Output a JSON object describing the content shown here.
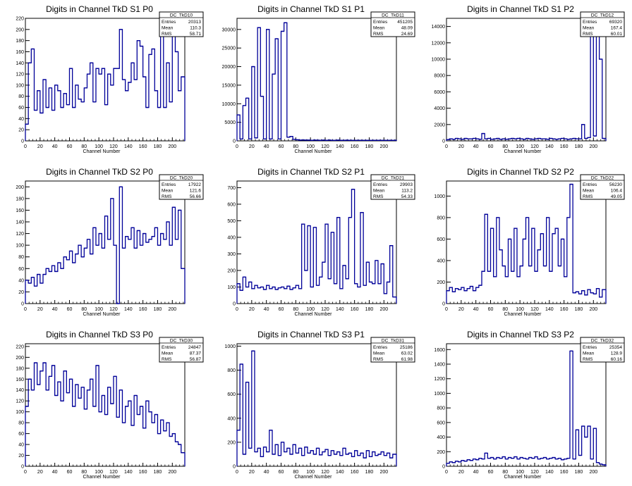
{
  "chart_data": [
    {
      "type": "histogram",
      "title": "Digits in Channel TkD S1 P0",
      "xlabel": "Channel Number",
      "xlim": [
        0,
        217
      ],
      "ylim": [
        0,
        220
      ],
      "xticks": [
        0,
        20,
        40,
        60,
        80,
        100,
        120,
        140,
        160,
        180,
        200
      ],
      "yticks": [
        0,
        20,
        40,
        60,
        80,
        100,
        120,
        140,
        160,
        180,
        200,
        220
      ],
      "stats": {
        "name": "DC_TkD10",
        "entries": "20313",
        "mean": "110.3",
        "rms": "58.71"
      },
      "x": [
        0,
        4,
        8,
        12,
        16,
        20,
        24,
        28,
        32,
        36,
        40,
        44,
        48,
        52,
        56,
        60,
        64,
        68,
        72,
        76,
        80,
        84,
        88,
        92,
        96,
        100,
        104,
        108,
        112,
        116,
        120,
        124,
        128,
        132,
        136,
        140,
        144,
        148,
        152,
        156,
        160,
        164,
        168,
        172,
        176,
        180,
        184,
        188,
        192,
        196,
        200,
        204,
        208,
        212
      ],
      "values": [
        30,
        140,
        165,
        55,
        90,
        50,
        110,
        60,
        95,
        55,
        100,
        90,
        60,
        85,
        65,
        130,
        60,
        100,
        75,
        70,
        95,
        120,
        140,
        70,
        130,
        120,
        130,
        65,
        120,
        100,
        130,
        130,
        200,
        110,
        90,
        105,
        140,
        110,
        180,
        170,
        115,
        60,
        155,
        165,
        90,
        60,
        210,
        60,
        140,
        70,
        195,
        160,
        90,
        115
      ]
    },
    {
      "type": "histogram",
      "title": "Digits in Channel TkD S1 P1",
      "xlabel": "Channel Number",
      "xlim": [
        0,
        217
      ],
      "ylim": [
        0,
        33000
      ],
      "xticks": [
        0,
        20,
        40,
        60,
        80,
        100,
        120,
        140,
        160,
        180,
        200
      ],
      "yticks": [
        0,
        5000,
        10000,
        15000,
        20000,
        25000,
        30000
      ],
      "stats": {
        "name": "DC_TkD11",
        "entries": "451205",
        "mean": "48.09",
        "rms": "24.69"
      },
      "x": [
        0,
        4,
        8,
        12,
        16,
        20,
        24,
        28,
        32,
        36,
        40,
        44,
        48,
        52,
        56,
        60,
        64,
        68,
        72,
        76,
        80,
        84,
        88,
        92,
        96,
        100,
        104,
        108,
        112,
        116,
        120,
        124,
        128,
        132,
        136,
        140,
        144,
        148,
        152,
        156,
        160,
        164,
        168,
        172,
        176,
        180,
        184,
        188,
        192,
        196,
        200,
        204,
        208,
        212
      ],
      "values": [
        7000,
        500,
        9500,
        11500,
        500,
        20000,
        800,
        30500,
        12000,
        500,
        30000,
        500,
        18000,
        27500,
        500,
        29500,
        31800,
        1000,
        1200,
        400,
        300,
        200,
        250,
        200,
        200,
        150,
        200,
        180,
        150,
        200,
        150,
        200,
        150,
        150,
        200,
        150,
        150,
        180,
        150,
        150,
        150,
        150,
        150,
        150,
        150,
        150,
        150,
        150,
        150,
        150,
        150,
        150,
        150,
        150
      ]
    },
    {
      "type": "histogram",
      "title": "Digits in Channel TkD S1 P2",
      "xlabel": "Channel Number",
      "xlim": [
        0,
        217
      ],
      "ylim": [
        0,
        15000
      ],
      "xticks": [
        0,
        20,
        40,
        60,
        80,
        100,
        120,
        140,
        160,
        180,
        200
      ],
      "yticks": [
        0,
        2000,
        4000,
        6000,
        8000,
        10000,
        12000,
        14000
      ],
      "stats": {
        "name": "DC_TkD12",
        "entries": "69320",
        "mean": "167.4",
        "rms": "60.01"
      },
      "x": [
        0,
        4,
        8,
        12,
        16,
        20,
        24,
        28,
        32,
        36,
        40,
        44,
        48,
        52,
        56,
        60,
        64,
        68,
        72,
        76,
        80,
        84,
        88,
        92,
        96,
        100,
        104,
        108,
        112,
        116,
        120,
        124,
        128,
        132,
        136,
        140,
        144,
        148,
        152,
        156,
        160,
        164,
        168,
        172,
        176,
        180,
        184,
        188,
        192,
        196,
        200,
        204,
        208,
        212
      ],
      "values": [
        150,
        250,
        200,
        300,
        250,
        200,
        300,
        250,
        250,
        300,
        250,
        200,
        900,
        250,
        300,
        200,
        250,
        300,
        200,
        250,
        200,
        250,
        300,
        250,
        300,
        250,
        200,
        300,
        250,
        200,
        250,
        300,
        250,
        250,
        200,
        300,
        250,
        200,
        250,
        300,
        250,
        200,
        250,
        300,
        250,
        250,
        2000,
        300,
        400,
        14000,
        600,
        14000,
        10000,
        300
      ]
    },
    {
      "type": "histogram",
      "title": "Digits in Channel TkD S2 P0",
      "xlabel": "Channel Number",
      "xlim": [
        0,
        217
      ],
      "ylim": [
        0,
        210
      ],
      "xticks": [
        0,
        20,
        40,
        60,
        80,
        100,
        120,
        140,
        160,
        180,
        200
      ],
      "yticks": [
        0,
        20,
        40,
        60,
        80,
        100,
        120,
        140,
        160,
        180,
        200
      ],
      "stats": {
        "name": "DC_TkD20",
        "entries": "17922",
        "mean": "121.6",
        "rms": "56.66"
      },
      "x": [
        0,
        4,
        8,
        12,
        16,
        20,
        24,
        28,
        32,
        36,
        40,
        44,
        48,
        52,
        56,
        60,
        64,
        68,
        72,
        76,
        80,
        84,
        88,
        92,
        96,
        100,
        104,
        108,
        112,
        116,
        120,
        124,
        128,
        132,
        136,
        140,
        144,
        148,
        152,
        156,
        160,
        164,
        168,
        172,
        176,
        180,
        184,
        188,
        192,
        196,
        200,
        204,
        208,
        212
      ],
      "values": [
        40,
        35,
        45,
        30,
        50,
        35,
        50,
        60,
        55,
        65,
        55,
        70,
        60,
        80,
        75,
        90,
        70,
        85,
        100,
        80,
        95,
        110,
        85,
        130,
        100,
        120,
        95,
        150,
        110,
        180,
        100,
        0,
        200,
        95,
        115,
        110,
        130,
        95,
        125,
        100,
        120,
        105,
        110,
        115,
        130,
        100,
        120,
        110,
        140,
        100,
        165,
        110,
        160,
        60
      ]
    },
    {
      "type": "histogram",
      "title": "Digits in Channel TkD S2 P1",
      "xlabel": "Channel Number",
      "xlim": [
        0,
        217
      ],
      "ylim": [
        0,
        740
      ],
      "xticks": [
        0,
        20,
        40,
        60,
        80,
        100,
        120,
        140,
        160,
        180,
        200
      ],
      "yticks": [
        0,
        100,
        200,
        300,
        400,
        500,
        600,
        700
      ],
      "stats": {
        "name": "DC_TkD21",
        "entries": "29903",
        "mean": "113.2",
        "rms": "54.33"
      },
      "x": [
        0,
        4,
        8,
        12,
        16,
        20,
        24,
        28,
        32,
        36,
        40,
        44,
        48,
        52,
        56,
        60,
        64,
        68,
        72,
        76,
        80,
        84,
        88,
        92,
        96,
        100,
        104,
        108,
        112,
        116,
        120,
        124,
        128,
        132,
        136,
        140,
        144,
        148,
        152,
        156,
        160,
        164,
        168,
        172,
        176,
        180,
        184,
        188,
        192,
        196,
        200,
        204,
        208,
        212
      ],
      "values": [
        120,
        80,
        160,
        100,
        130,
        90,
        110,
        95,
        100,
        85,
        110,
        90,
        100,
        85,
        95,
        100,
        90,
        105,
        85,
        95,
        110,
        90,
        480,
        200,
        470,
        100,
        460,
        110,
        160,
        250,
        480,
        150,
        430,
        120,
        520,
        90,
        230,
        150,
        520,
        690,
        120,
        100,
        550,
        110,
        250,
        130,
        120,
        260,
        120,
        240,
        60,
        130,
        350,
        40
      ]
    },
    {
      "type": "histogram",
      "title": "Digits in Channel TkD S2 P2",
      "xlabel": "Channel Number",
      "xlim": [
        0,
        217
      ],
      "ylim": [
        0,
        1140
      ],
      "xticks": [
        0,
        20,
        40,
        60,
        80,
        100,
        120,
        140,
        160,
        180,
        200
      ],
      "yticks": [
        0,
        200,
        400,
        600,
        800,
        1000
      ],
      "stats": {
        "name": "DC_TkD22",
        "entries": "56230",
        "mean": "106.4",
        "rms": "49.05"
      },
      "x": [
        0,
        4,
        8,
        12,
        16,
        20,
        24,
        28,
        32,
        36,
        40,
        44,
        48,
        52,
        56,
        60,
        64,
        68,
        72,
        76,
        80,
        84,
        88,
        92,
        96,
        100,
        104,
        108,
        112,
        116,
        120,
        124,
        128,
        132,
        136,
        140,
        144,
        148,
        152,
        156,
        160,
        164,
        168,
        172,
        176,
        180,
        184,
        188,
        192,
        196,
        200,
        204,
        208,
        212
      ],
      "values": [
        120,
        150,
        110,
        140,
        130,
        150,
        120,
        140,
        160,
        120,
        150,
        170,
        300,
        830,
        300,
        700,
        250,
        800,
        500,
        350,
        250,
        600,
        300,
        700,
        250,
        350,
        600,
        800,
        350,
        700,
        300,
        500,
        650,
        350,
        800,
        300,
        650,
        700,
        350,
        600,
        250,
        800,
        1110,
        100,
        110,
        90,
        120,
        80,
        130,
        100,
        90,
        140,
        60,
        130
      ]
    },
    {
      "type": "histogram",
      "title": "Digits in Channel TkD S3 P0",
      "xlabel": "Channel Number",
      "xlim": [
        0,
        217
      ],
      "ylim": [
        0,
        225
      ],
      "xticks": [
        0,
        20,
        40,
        60,
        80,
        100,
        120,
        140,
        160,
        180,
        200
      ],
      "yticks": [
        0,
        20,
        40,
        60,
        80,
        100,
        120,
        140,
        160,
        180,
        200,
        220
      ],
      "stats": {
        "name": "DC_TkD30",
        "entries": "24847",
        "mean": "87.37",
        "rms": "56.87"
      },
      "x": [
        0,
        4,
        8,
        12,
        16,
        20,
        24,
        28,
        32,
        36,
        40,
        44,
        48,
        52,
        56,
        60,
        64,
        68,
        72,
        76,
        80,
        84,
        88,
        92,
        96,
        100,
        104,
        108,
        112,
        116,
        120,
        124,
        128,
        132,
        136,
        140,
        144,
        148,
        152,
        156,
        160,
        164,
        168,
        172,
        176,
        180,
        184,
        188,
        192,
        196,
        200,
        204,
        208,
        212
      ],
      "values": [
        110,
        160,
        140,
        190,
        150,
        175,
        190,
        140,
        165,
        185,
        130,
        155,
        120,
        175,
        135,
        160,
        110,
        150,
        125,
        145,
        105,
        140,
        160,
        110,
        185,
        100,
        130,
        95,
        145,
        115,
        165,
        90,
        140,
        80,
        110,
        120,
        75,
        130,
        95,
        110,
        70,
        120,
        100,
        80,
        95,
        60,
        85,
        65,
        80,
        55,
        60,
        45,
        40,
        25
      ]
    },
    {
      "type": "histogram",
      "title": "Digits in Channel TkD S3 P1",
      "xlabel": "Channel Number",
      "xlim": [
        0,
        217
      ],
      "ylim": [
        0,
        1020
      ],
      "xticks": [
        0,
        20,
        40,
        60,
        80,
        100,
        120,
        140,
        160,
        180,
        200
      ],
      "yticks": [
        0,
        200,
        400,
        600,
        800,
        1000
      ],
      "stats": {
        "name": "DC_TkD31",
        "entries": "25186",
        "mean": "63.02",
        "rms": "61.98"
      },
      "x": [
        0,
        4,
        8,
        12,
        16,
        20,
        24,
        28,
        32,
        36,
        40,
        44,
        48,
        52,
        56,
        60,
        64,
        68,
        72,
        76,
        80,
        84,
        88,
        92,
        96,
        100,
        104,
        108,
        112,
        116,
        120,
        124,
        128,
        132,
        136,
        140,
        144,
        148,
        152,
        156,
        160,
        164,
        168,
        172,
        176,
        180,
        184,
        188,
        192,
        196,
        200,
        204,
        208,
        212
      ],
      "values": [
        300,
        850,
        100,
        700,
        150,
        960,
        120,
        150,
        80,
        160,
        120,
        300,
        100,
        180,
        90,
        200,
        120,
        150,
        100,
        180,
        110,
        150,
        90,
        160,
        110,
        130,
        100,
        150,
        95,
        120,
        140,
        90,
        130,
        100,
        120,
        90,
        150,
        100,
        110,
        80,
        130,
        90,
        110,
        70,
        130,
        80,
        120,
        90,
        100,
        120,
        90,
        110,
        70,
        100
      ]
    },
    {
      "type": "histogram",
      "title": "Digits in Channel TkD S3 P2",
      "xlabel": "Channel Number",
      "xlim": [
        0,
        217
      ],
      "ylim": [
        0,
        1680
      ],
      "xticks": [
        0,
        20,
        40,
        60,
        80,
        100,
        120,
        140,
        160,
        180,
        200
      ],
      "yticks": [
        0,
        200,
        400,
        600,
        800,
        1000,
        1200,
        1400,
        1600
      ],
      "stats": {
        "name": "DC_TkD32",
        "entries": "25354",
        "mean": "128.9",
        "rms": "60.16"
      },
      "x": [
        0,
        4,
        8,
        12,
        16,
        20,
        24,
        28,
        32,
        36,
        40,
        44,
        48,
        52,
        56,
        60,
        64,
        68,
        72,
        76,
        80,
        84,
        88,
        92,
        96,
        100,
        104,
        108,
        112,
        116,
        120,
        124,
        128,
        132,
        136,
        140,
        144,
        148,
        152,
        156,
        160,
        164,
        168,
        172,
        176,
        180,
        184,
        188,
        192,
        196,
        200,
        204,
        208,
        212
      ],
      "values": [
        40,
        60,
        50,
        70,
        60,
        80,
        70,
        90,
        80,
        100,
        90,
        110,
        100,
        180,
        110,
        120,
        100,
        120,
        110,
        130,
        100,
        120,
        110,
        130,
        100,
        120,
        110,
        100,
        120,
        110,
        130,
        100,
        110,
        120,
        100,
        110,
        120,
        100,
        110,
        90,
        100,
        110,
        1580,
        100,
        500,
        150,
        550,
        400,
        550,
        100,
        520,
        50,
        30,
        20
      ]
    }
  ]
}
